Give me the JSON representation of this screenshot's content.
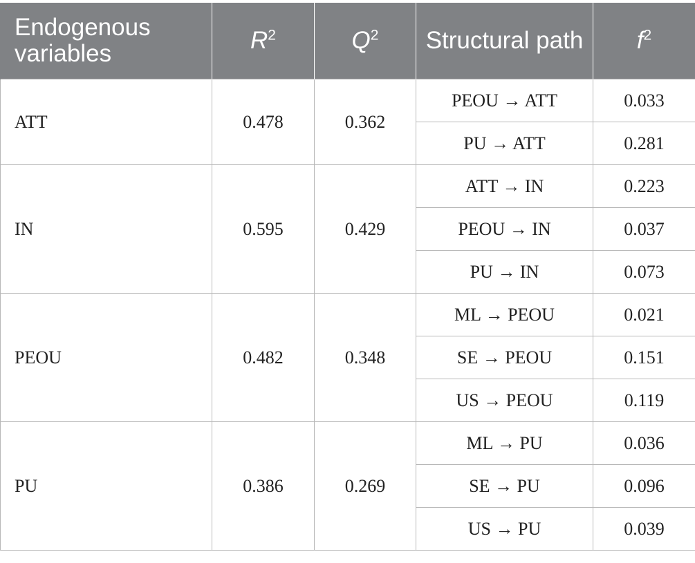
{
  "headers": {
    "variables": "Endogenous variables",
    "r2_base": "R",
    "r2_sup": "2",
    "q2_base": "Q",
    "q2_sup": "2",
    "path": "Structural path",
    "f2_base": "f",
    "f2_sup": "2"
  },
  "groups": [
    {
      "variable": "ATT",
      "r2": "0.478",
      "q2": "0.362",
      "paths": [
        {
          "path": "PEOU → ATT",
          "f2": "0.033"
        },
        {
          "path": "PU → ATT",
          "f2": "0.281"
        }
      ]
    },
    {
      "variable": "IN",
      "r2": "0.595",
      "q2": "0.429",
      "paths": [
        {
          "path": "ATT → IN",
          "f2": "0.223"
        },
        {
          "path": "PEOU → IN",
          "f2": "0.037"
        },
        {
          "path": "PU → IN",
          "f2": "0.073"
        }
      ]
    },
    {
      "variable": "PEOU",
      "r2": "0.482",
      "q2": "0.348",
      "paths": [
        {
          "path": "ML → PEOU",
          "f2": "0.021"
        },
        {
          "path": "SE → PEOU",
          "f2": "0.151"
        },
        {
          "path": "US → PEOU",
          "f2": "0.119"
        }
      ]
    },
    {
      "variable": "PU",
      "r2": "0.386",
      "q2": "0.269",
      "paths": [
        {
          "path": "ML → PU",
          "f2": "0.036"
        },
        {
          "path": "SE → PU",
          "f2": "0.096"
        },
        {
          "path": "US → PU",
          "f2": "0.039"
        }
      ]
    }
  ]
}
